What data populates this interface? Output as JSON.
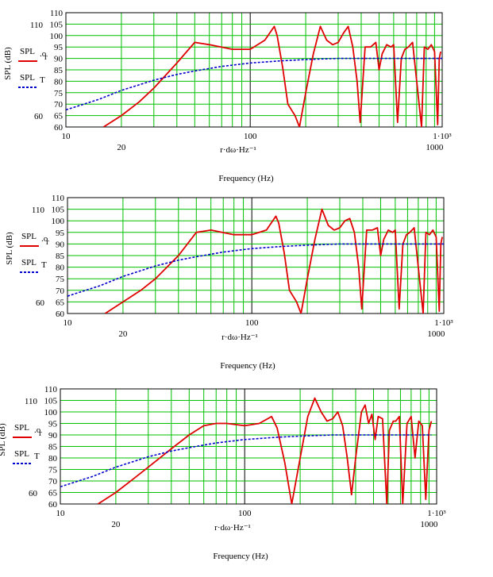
{
  "charts": [
    {
      "ylabel": "SPL (dB)",
      "xaxis_expr": "r·dω·Hz⁻¹",
      "xlabel": "Frequency (Hz)",
      "legend": [
        {
          "main": "SPL",
          "sub": ".o",
          "sub2": "r"
        },
        {
          "main": "SPL",
          "sub": "T",
          "sub2": ""
        }
      ],
      "ytick_labels": [
        "110",
        "105",
        "100",
        "95",
        "90",
        "85",
        "80",
        "75",
        "70",
        "65",
        "60"
      ],
      "left_extra_labels": [
        "110",
        "60"
      ],
      "xtick_labels_top": [
        "10",
        "100",
        "1·10³"
      ],
      "xtick_labels_bottom": [
        "20",
        "1000"
      ]
    },
    {
      "ylabel": "SPL (dB)",
      "xaxis_expr": "r·dω·Hz⁻¹",
      "xlabel": "Frequency (Hz)",
      "legend": [
        {
          "main": "SPL",
          "sub": ".o",
          "sub2": "r"
        },
        {
          "main": "SPL",
          "sub": "T",
          "sub2": ""
        }
      ],
      "ytick_labels": [
        "110",
        "105",
        "100",
        "95",
        "90",
        "85",
        "80",
        "75",
        "70",
        "65",
        "60"
      ],
      "left_extra_labels": [
        "110",
        "60"
      ],
      "xtick_labels_top": [
        "10",
        "100",
        "1·10³"
      ],
      "xtick_labels_bottom": [
        "20",
        "1000"
      ]
    },
    {
      "ylabel": "SPL (dB)",
      "xaxis_expr": "r·dω·Hz⁻¹",
      "xlabel": "Frequency (Hz)",
      "legend": [
        {
          "main": "SPL",
          "sub": ".o",
          "sub2": "r"
        },
        {
          "main": "SPL",
          "sub": "T",
          "sub2": ""
        }
      ],
      "ytick_labels": [
        "110",
        "105",
        "100",
        "95",
        "90",
        "85",
        "80",
        "75",
        "70",
        "65",
        "60"
      ],
      "left_extra_labels": [
        "110",
        "60"
      ],
      "xtick_labels_top": [
        "10",
        "100",
        "1·10³"
      ],
      "xtick_labels_bottom": [
        "20",
        "1000"
      ]
    }
  ],
  "chart_data": [
    {
      "type": "line",
      "x_scale": "log",
      "xlim": [
        10,
        1100
      ],
      "ylim": [
        60,
        110
      ],
      "grid": true,
      "colors": {
        "grid": "#00c000",
        "spl_or": "#e00000",
        "spl_t": "#0000cc"
      },
      "series": [
        {
          "name": "SPL.o r",
          "style": "solid",
          "x": [
            16,
            20,
            25,
            30,
            40,
            50,
            60,
            80,
            100,
            120,
            135,
            140,
            150,
            160,
            175,
            185,
            200,
            220,
            240,
            260,
            280,
            300,
            320,
            340,
            360,
            380,
            395,
            420,
            450,
            480,
            500,
            520,
            550,
            580,
            600,
            630,
            660,
            690,
            720,
            760,
            800,
            850,
            880,
            920,
            960,
            1000,
            1040,
            1060,
            1080
          ],
          "y": [
            60,
            65,
            71,
            77,
            88,
            97,
            96,
            94,
            94,
            98,
            104,
            100,
            86,
            70,
            65,
            60,
            75,
            92,
            104,
            98,
            96,
            97,
            101,
            104,
            95,
            80,
            62,
            95,
            95,
            97,
            85,
            92,
            96,
            95,
            96,
            62,
            90,
            94,
            95,
            97,
            80,
            60,
            95,
            94,
            96,
            93,
            61,
            90,
            93
          ]
        },
        {
          "name": "SPL T",
          "style": "dashed",
          "x": [
            10,
            15,
            20,
            30,
            40,
            50,
            70,
            100,
            150,
            200,
            300,
            500,
            700,
            1000,
            1100
          ],
          "y": [
            67.5,
            72,
            76,
            80.5,
            83,
            84.5,
            86.5,
            88,
            89,
            89.5,
            90,
            90,
            90,
            90,
            90
          ]
        }
      ]
    },
    {
      "type": "line",
      "x_scale": "log",
      "xlim": [
        10,
        1100
      ],
      "ylim": [
        60,
        110
      ],
      "grid": true,
      "colors": {
        "grid": "#00c000",
        "spl_or": "#e00000",
        "spl_t": "#0000cc"
      },
      "series": [
        {
          "name": "SPL.o r",
          "style": "solid",
          "x": [
            16,
            20,
            25,
            30,
            40,
            50,
            60,
            80,
            100,
            120,
            135,
            140,
            150,
            160,
            175,
            185,
            200,
            220,
            240,
            260,
            280,
            300,
            320,
            340,
            360,
            380,
            395,
            420,
            450,
            480,
            500,
            520,
            550,
            580,
            600,
            630,
            660,
            690,
            720,
            760,
            800,
            850,
            880,
            920,
            960,
            1000,
            1040,
            1060,
            1080
          ],
          "y": [
            60,
            65,
            70,
            75,
            85,
            95,
            96,
            94,
            94,
            96,
            102,
            99,
            86,
            70,
            65,
            60,
            75,
            92,
            105,
            98,
            96,
            97,
            100,
            101,
            95,
            80,
            62,
            96,
            96,
            97,
            85,
            92,
            96,
            95,
            96,
            62,
            90,
            94,
            95,
            97,
            80,
            60,
            95,
            94,
            96,
            93,
            61,
            90,
            93
          ]
        },
        {
          "name": "SPL T",
          "style": "dashed",
          "x": [
            10,
            15,
            20,
            30,
            40,
            50,
            70,
            100,
            150,
            200,
            300,
            500,
            700,
            1000,
            1100
          ],
          "y": [
            67.5,
            72,
            76,
            80.5,
            83,
            84.5,
            86.5,
            88,
            89,
            89.5,
            90,
            90,
            90,
            90,
            90
          ]
        }
      ]
    },
    {
      "type": "line",
      "x_scale": "log",
      "xlim": [
        10,
        1100
      ],
      "ylim": [
        60,
        110
      ],
      "grid": true,
      "colors": {
        "grid": "#00c000",
        "spl_or": "#e00000",
        "spl_t": "#0000cc"
      },
      "series": [
        {
          "name": "SPL.o r",
          "style": "solid",
          "x": [
            16,
            20,
            25,
            30,
            40,
            50,
            60,
            70,
            80,
            100,
            120,
            140,
            150,
            165,
            180,
            200,
            220,
            240,
            260,
            280,
            300,
            320,
            340,
            360,
            380,
            400,
            430,
            450,
            470,
            490,
            510,
            530,
            560,
            590,
            610,
            640,
            660,
            690,
            720,
            760,
            800,
            840,
            880,
            920,
            960,
            1000,
            1030
          ],
          "y": [
            60,
            65,
            71,
            76,
            84,
            90,
            94,
            95,
            95,
            94,
            95,
            98,
            93,
            78,
            60,
            80,
            98,
            106,
            100,
            96,
            97,
            100,
            94,
            80,
            64,
            80,
            100,
            103,
            95,
            99,
            88,
            98,
            97,
            60,
            92,
            96,
            96,
            98,
            60,
            95,
            98,
            80,
            96,
            94,
            62,
            92,
            96
          ]
        },
        {
          "name": "SPL T",
          "style": "dashed",
          "x": [
            10,
            15,
            20,
            30,
            40,
            50,
            70,
            100,
            150,
            200,
            300,
            500,
            700,
            1000,
            1030
          ],
          "y": [
            67.5,
            72,
            76,
            80.5,
            83,
            84.5,
            86.5,
            88,
            89,
            89.5,
            90,
            90,
            90,
            90,
            90
          ]
        }
      ]
    }
  ]
}
